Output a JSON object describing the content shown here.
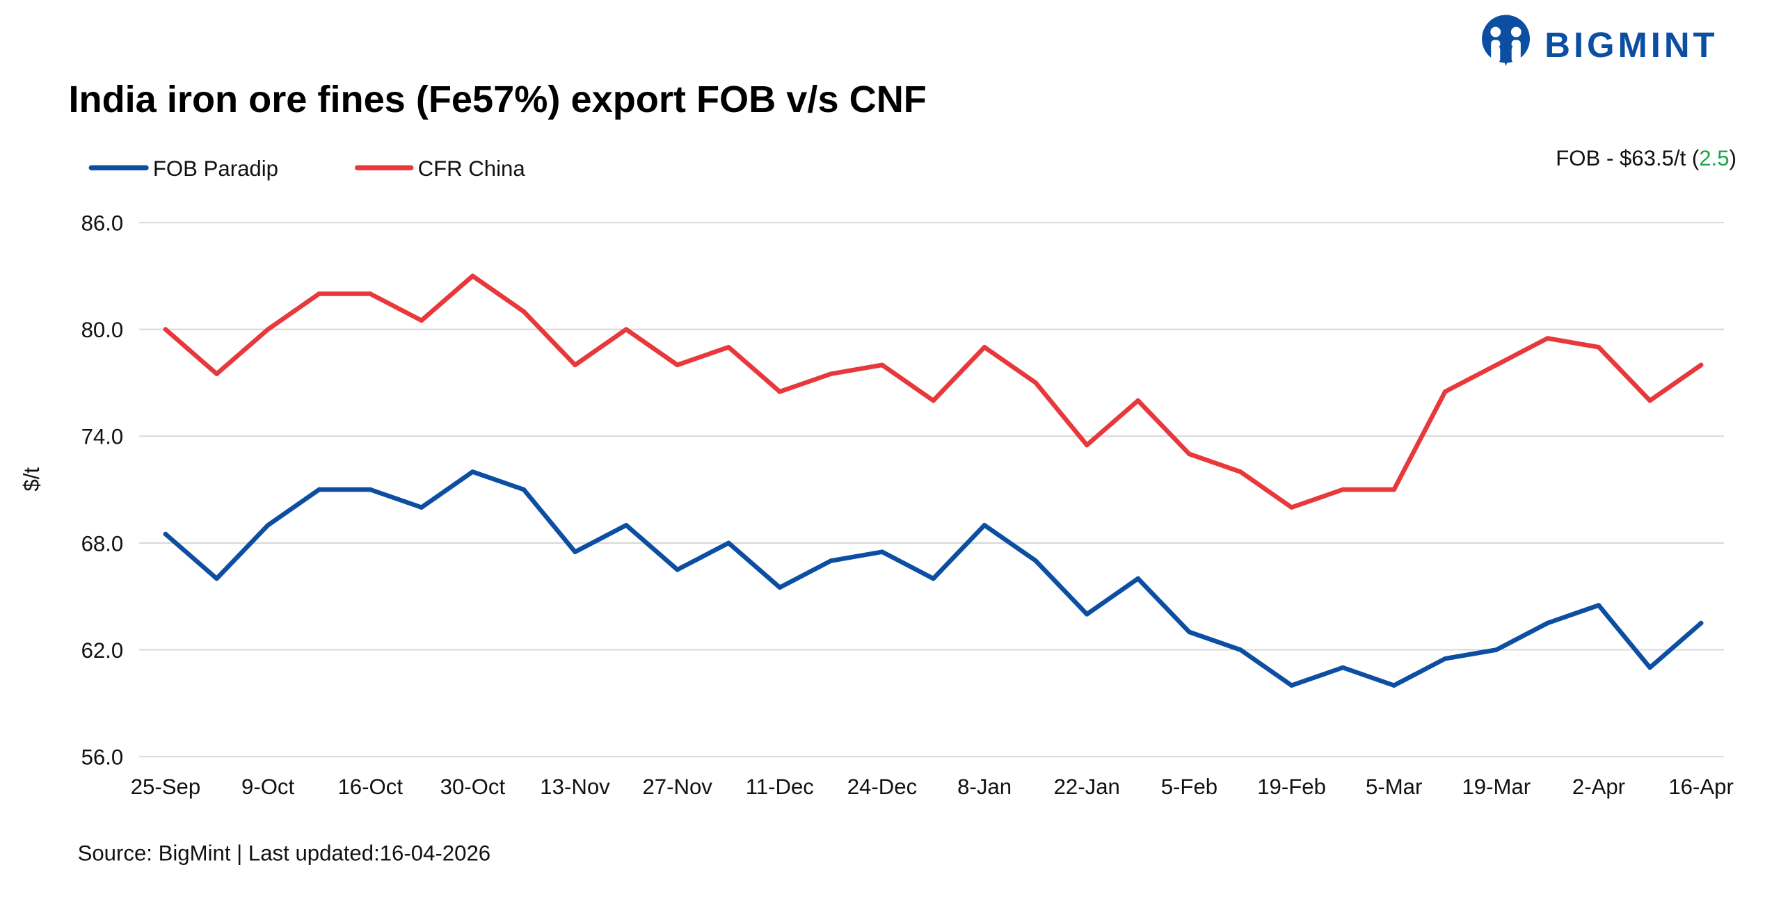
{
  "logo": {
    "text": "BIGMINT",
    "color": "#0b4ea2"
  },
  "chart_data": {
    "type": "line",
    "title": "India iron ore fines (Fe57%) export FOB v/s CNF",
    "ylabel": "$/t",
    "xlabel": "",
    "ylim": [
      56,
      86
    ],
    "yticks": [
      "86.0",
      "80.0",
      "74.0",
      "68.0",
      "62.0",
      "56.0"
    ],
    "ytick_values": [
      86,
      80,
      74,
      68,
      62,
      56
    ],
    "grid": true,
    "legend_placement": "top-left",
    "categories": [
      "25-Sep",
      "",
      "9-Oct",
      "",
      "16-Oct",
      "",
      "30-Oct",
      "",
      "13-Nov",
      "",
      "27-Nov",
      "",
      "11-Dec",
      "",
      "24-Dec",
      "",
      "8-Jan",
      "",
      "22-Jan",
      "",
      "5-Feb",
      "",
      "19-Feb",
      "",
      "5-Mar",
      "",
      "19-Mar",
      "",
      "2-Apr",
      "",
      "16-Apr"
    ],
    "series": [
      {
        "name": "FOB Paradip",
        "color": "#0b4ea2",
        "values": [
          68.5,
          66.0,
          69.0,
          71.0,
          71.0,
          70.0,
          72.0,
          71.0,
          67.5,
          69.0,
          66.5,
          68.0,
          65.5,
          67.0,
          67.5,
          66.0,
          69.0,
          67.0,
          64.0,
          66.0,
          63.0,
          62.0,
          60.0,
          61.0,
          60.0,
          61.5,
          62.0,
          63.5,
          64.5,
          61.0,
          63.5
        ]
      },
      {
        "name": "CFR China",
        "color": "#e8383b",
        "values": [
          80.0,
          77.5,
          80.0,
          82.0,
          82.0,
          80.5,
          83.0,
          81.0,
          78.0,
          80.0,
          78.0,
          79.0,
          76.5,
          77.5,
          78.0,
          76.0,
          79.0,
          77.0,
          73.5,
          76.0,
          73.0,
          72.0,
          70.0,
          71.0,
          71.0,
          76.5,
          78.0,
          79.5,
          79.0,
          76.0,
          78.0
        ]
      }
    ],
    "annotation": {
      "prefix": "FOB - $63.5/t (",
      "change": "2.5",
      "suffix": ")",
      "change_color": "#1aa64a"
    },
    "source": "Source: BigMint | Last updated:16-04-2026"
  }
}
